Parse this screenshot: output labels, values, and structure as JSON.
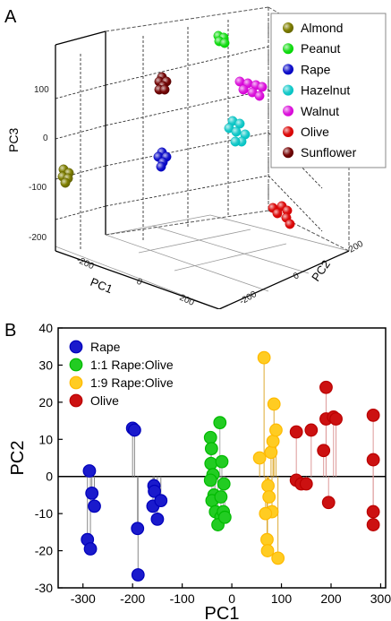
{
  "panels": {
    "a": "A",
    "b": "B"
  },
  "chart_data": [
    {
      "type": "scatter3d",
      "axes": {
        "x": "PC1",
        "y": "PC2",
        "z": "PC3"
      },
      "z_ticks": [
        "100",
        "0",
        "-100",
        "-200"
      ],
      "x_ticks": [
        "-200",
        "0",
        "200"
      ],
      "y_ticks": [
        "200",
        "0",
        "-200"
      ],
      "legend_position": "top-right",
      "series": [
        {
          "name": "Almond",
          "color": "#808000"
        },
        {
          "name": "Peanut",
          "color": "#22dd22"
        },
        {
          "name": "Rape",
          "color": "#1a1acc"
        },
        {
          "name": "Hazelnut",
          "color": "#22cccc"
        },
        {
          "name": "Walnut",
          "color": "#dd22dd"
        },
        {
          "name": "Olive",
          "color": "#dd1111"
        },
        {
          "name": "Sunflower",
          "color": "#7a0a0a"
        }
      ]
    },
    {
      "type": "scatter",
      "xlabel": "PC1",
      "ylabel": "PC2",
      "xlim": [
        -350,
        310
      ],
      "ylim": [
        -30,
        40
      ],
      "x_ticks": [
        -300,
        -200,
        -100,
        0,
        100,
        200,
        300
      ],
      "y_ticks": [
        -30,
        -20,
        -10,
        0,
        10,
        20,
        30,
        40
      ],
      "legend_position": "top-left",
      "series": [
        {
          "name": "Rape",
          "color": "#1a1acc",
          "stem_color": "#888888",
          "points": [
            [
              -287,
              1.5
            ],
            [
              -282,
              -4.5
            ],
            [
              -277,
              -8
            ],
            [
              -291,
              -17
            ],
            [
              -285,
              -19.5
            ],
            [
              -200,
              13
            ],
            [
              -196,
              12.5
            ],
            [
              -190,
              -14
            ],
            [
              -189,
              -26.5
            ],
            [
              -157,
              -2.5
            ],
            [
              -156,
              -4
            ],
            [
              -159,
              -8
            ],
            [
              -143,
              -6.5
            ],
            [
              -150,
              -11.5
            ]
          ]
        },
        {
          "name": "1:1 Rape:Olive",
          "color": "#22cc22",
          "stem_color": "#aaaaaa",
          "points": [
            [
              -43,
              10.5
            ],
            [
              -41,
              7.5
            ],
            [
              -42,
              3.5
            ],
            [
              -38,
              0.5
            ],
            [
              -43,
              -1
            ],
            [
              -36,
              -5
            ],
            [
              -40,
              -6.5
            ],
            [
              -33,
              -9.5
            ],
            [
              -22,
              -11
            ],
            [
              -28,
              -13
            ],
            [
              -24,
              14.5
            ],
            [
              -20,
              4
            ],
            [
              -16,
              -2
            ],
            [
              -22,
              -5.5
            ],
            [
              -17,
              -9.5
            ],
            [
              -14,
              -11
            ]
          ]
        },
        {
          "name": "1:9 Rape:Olive",
          "color": "#ffcc22",
          "stem_color": "#ddaa33",
          "points": [
            [
              56,
              5
            ],
            [
              65,
              32
            ],
            [
              73,
              -2.5
            ],
            [
              75,
              -5.5
            ],
            [
              79,
              6.5
            ],
            [
              83,
              9.5
            ],
            [
              81,
              -9.5
            ],
            [
              71,
              -17
            ],
            [
              72,
              -20
            ],
            [
              85,
              19.5
            ],
            [
              89,
              12.5
            ],
            [
              93,
              -22
            ],
            [
              68,
              -10
            ]
          ]
        },
        {
          "name": "Olive",
          "color": "#cc1111",
          "stem_color": "#dd9999",
          "points": [
            [
              130,
              12
            ],
            [
              130,
              -1
            ],
            [
              140,
              -2
            ],
            [
              150,
              -2
            ],
            [
              160,
              12.5
            ],
            [
              185,
              7
            ],
            [
              190,
              15.5
            ],
            [
              190,
              24
            ],
            [
              195,
              -7
            ],
            [
              205,
              16
            ],
            [
              210,
              15.5
            ],
            [
              285,
              16.5
            ],
            [
              285,
              4.5
            ],
            [
              285,
              -9.5
            ],
            [
              285,
              -13
            ]
          ]
        }
      ]
    }
  ]
}
